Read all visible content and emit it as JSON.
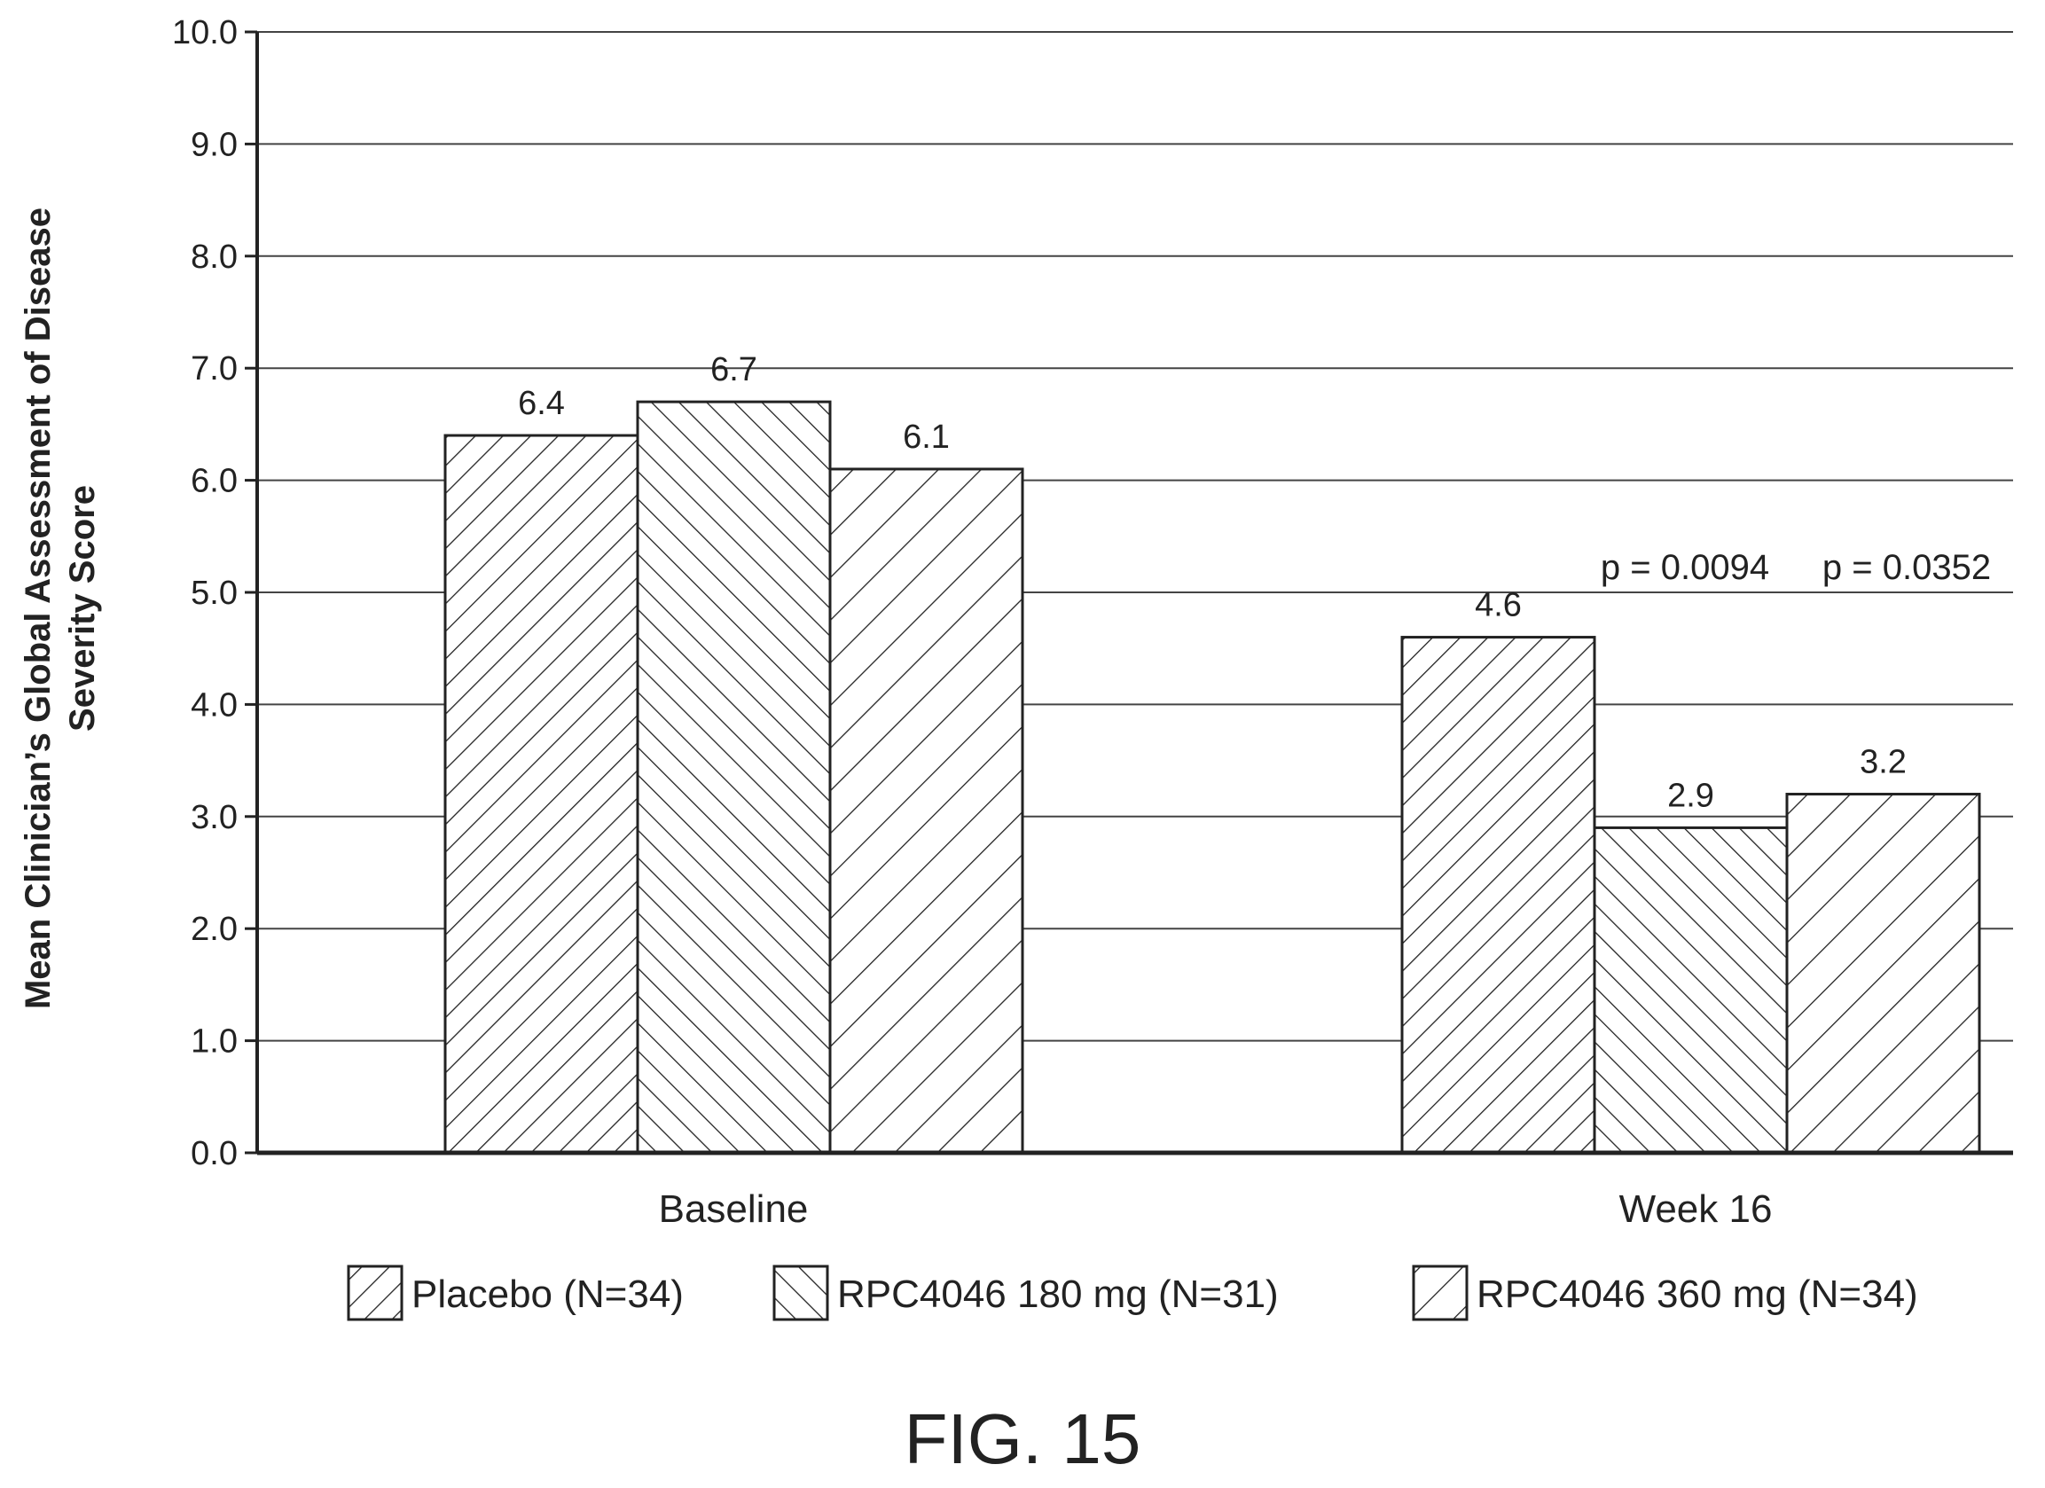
{
  "chart_data": {
    "type": "bar",
    "categories": [
      "Baseline",
      "Week 16"
    ],
    "series": [
      {
        "name": "Placebo (N=34)",
        "values": [
          6.4,
          4.6
        ],
        "labels": [
          "6.4",
          "4.6"
        ],
        "pattern": "fwd-dense"
      },
      {
        "name": "RPC4046 180 mg (N=31)",
        "values": [
          6.7,
          2.9
        ],
        "labels": [
          "6.7",
          "2.9"
        ],
        "pattern": "back"
      },
      {
        "name": "RPC4046 360 mg (N=34)",
        "values": [
          6.1,
          3.2
        ],
        "labels": [
          "6.1",
          "3.2"
        ],
        "pattern": "fwd-sparse"
      }
    ],
    "ylabel": "Mean Clinician’s Global Assessment of Disease Severity Score",
    "ylabel_lines": [
      "Mean Clinician’s Global Assessment of Disease",
      "Severity Score"
    ],
    "yticks": [
      "0.0",
      "1.0",
      "2.0",
      "3.0",
      "4.0",
      "5.0",
      "6.0",
      "7.0",
      "8.0",
      "9.0",
      "10.0"
    ],
    "ylim": [
      0,
      10
    ],
    "grid": true,
    "legend_position": "bottom",
    "annotations": [
      "p = 0.0094",
      "p = 0.0352"
    ]
  },
  "caption": "FIG. 15",
  "colors": {
    "ink": "#222222",
    "grid": "#444444",
    "background": "#ffffff"
  }
}
